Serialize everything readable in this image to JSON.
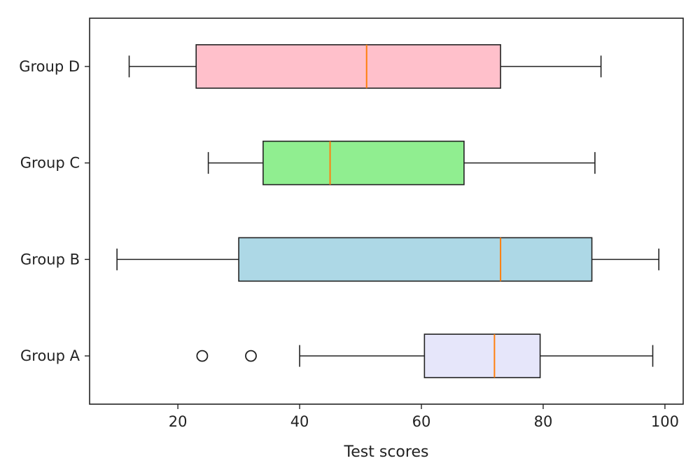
{
  "chart_data": {
    "type": "boxplot",
    "orientation": "horizontal",
    "xlabel": "Test scores",
    "ylabel": "",
    "xlim": [
      5.5,
      103
    ],
    "xticks": [
      20,
      40,
      60,
      80,
      100
    ],
    "categories": [
      "Group A",
      "Group B",
      "Group C",
      "Group D"
    ],
    "boxes": [
      {
        "label": "Group A",
        "whisker_low": 40,
        "q1": 60.5,
        "median": 72,
        "q3": 79.5,
        "whisker_high": 98,
        "fliers": [
          24,
          32
        ],
        "color": "#e6e6fa"
      },
      {
        "label": "Group B",
        "whisker_low": 10,
        "q1": 30,
        "median": 73,
        "q3": 88,
        "whisker_high": 99,
        "fliers": [],
        "color": "#add8e6"
      },
      {
        "label": "Group C",
        "whisker_low": 25,
        "q1": 34,
        "median": 45,
        "q3": 67,
        "whisker_high": 88.5,
        "fliers": [],
        "color": "#90ee90"
      },
      {
        "label": "Group D",
        "whisker_low": 12,
        "q1": 23,
        "median": 51,
        "q3": 73,
        "whisker_high": 89.5,
        "fliers": [],
        "color": "#ffc0cb"
      }
    ],
    "median_color": "#ff7f0e",
    "grid": false
  }
}
